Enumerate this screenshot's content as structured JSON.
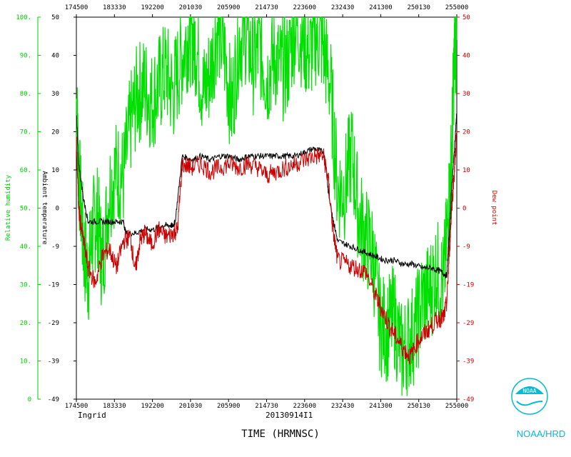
{
  "chart_data": {
    "type": "line",
    "storm": "Ingrid",
    "flight_id": "20130914I1",
    "xlabel": "TIME (HRMNSC)",
    "x_ticks": [
      "174500",
      "183330",
      "192200",
      "201030",
      "205900",
      "214730",
      "223600",
      "232430",
      "241300",
      "250130",
      "255000"
    ],
    "x_range_hours": [
      17.75,
      25.8333
    ],
    "left_temp_axis": {
      "label": "Ambient temperature",
      "ticks": [
        "50",
        "40",
        "30",
        "20",
        "10",
        "0",
        "-9",
        "-19",
        "-29",
        "-39",
        "-49"
      ],
      "range": [
        -49,
        50
      ]
    },
    "rh_axis": {
      "label": "Relative humidity",
      "ticks": [
        "100.",
        "90.",
        "80.",
        "70.",
        "60.",
        "50.",
        "40.",
        "30.",
        "20.",
        "10.",
        "0"
      ],
      "range": [
        0,
        100
      ]
    },
    "right_axis": {
      "label": "Dew point",
      "ticks": [
        "50",
        "40",
        "30",
        "20",
        "10",
        "0",
        "-9",
        "-19",
        "-29",
        "-39",
        "-49"
      ],
      "range": [
        -49,
        50
      ]
    },
    "series": [
      {
        "name": "Relative humidity",
        "color": "#00e000",
        "axis": "rh",
        "x_hours": [
          17.75,
          17.8,
          17.9,
          18.0,
          18.1,
          18.2,
          18.3,
          18.45,
          18.6,
          18.75,
          18.9,
          19.05,
          19.2,
          19.35,
          19.5,
          19.65,
          19.8,
          19.95,
          20.1,
          20.2,
          20.3,
          20.45,
          20.6,
          20.75,
          20.9,
          21.05,
          21.2,
          21.35,
          21.5,
          21.65,
          21.8,
          21.95,
          22.1,
          22.25,
          22.4,
          22.55,
          22.7,
          22.85,
          23.0,
          23.15,
          23.3,
          23.45,
          23.6,
          23.75,
          23.9,
          24.05,
          24.2,
          24.35,
          24.5,
          24.65,
          24.8,
          24.95,
          25.1,
          25.25,
          25.4,
          25.55,
          25.65,
          25.72,
          25.78,
          25.83
        ],
        "y": [
          78,
          60,
          40,
          32,
          45,
          48,
          35,
          55,
          60,
          58,
          72,
          80,
          82,
          78,
          82,
          86,
          80,
          88,
          94,
          96,
          92,
          80,
          86,
          98,
          90,
          76,
          94,
          96,
          88,
          92,
          84,
          90,
          86,
          88,
          98,
          95,
          90,
          96,
          92,
          82,
          55,
          55,
          65,
          48,
          42,
          38,
          20,
          18,
          22,
          12,
          15,
          18,
          26,
          28,
          34,
          30,
          48,
          62,
          90,
          94
        ]
      },
      {
        "name": "Ambient temperature",
        "color": "#000000",
        "axis": "temp",
        "x_hours": [
          17.75,
          17.8,
          17.9,
          18.0,
          18.2,
          18.4,
          18.6,
          18.75,
          18.8,
          19.0,
          19.2,
          19.4,
          19.6,
          19.75,
          19.8,
          19.85,
          20.0,
          20.2,
          20.4,
          20.6,
          20.8,
          21.0,
          21.2,
          21.4,
          21.6,
          21.8,
          22.0,
          22.2,
          22.4,
          22.6,
          22.8,
          23.0,
          23.05,
          23.1,
          23.2,
          23.3,
          23.5,
          23.7,
          23.9,
          24.1,
          24.3,
          24.5,
          24.7,
          24.9,
          25.1,
          25.3,
          25.5,
          25.62,
          25.68,
          25.72,
          25.78,
          25.83
        ],
        "y": [
          25,
          12,
          3,
          -3,
          -3,
          -3,
          -3,
          -3,
          -6,
          -6,
          -5,
          -5,
          -4,
          -4,
          -4,
          -3,
          14,
          13,
          14,
          13,
          14,
          14,
          13,
          14,
          14,
          14,
          14,
          14,
          14,
          15,
          16,
          15,
          12,
          5,
          -2,
          -8,
          -9,
          -10,
          -11,
          -12,
          -13,
          -13,
          -14,
          -14,
          -15,
          -15,
          -16,
          -17,
          -5,
          5,
          15,
          25
        ]
      },
      {
        "name": "Dew point",
        "color": "#cc0000",
        "axis": "temp",
        "x_hours": [
          17.75,
          17.8,
          17.9,
          18.0,
          18.15,
          18.3,
          18.45,
          18.6,
          18.75,
          18.9,
          19.0,
          19.1,
          19.2,
          19.35,
          19.5,
          19.65,
          19.8,
          19.9,
          20.0,
          20.2,
          20.4,
          20.6,
          20.8,
          21.0,
          21.2,
          21.4,
          21.6,
          21.8,
          22.0,
          22.2,
          22.4,
          22.6,
          22.8,
          23.0,
          23.1,
          23.2,
          23.3,
          23.5,
          23.7,
          23.9,
          24.1,
          24.25,
          24.4,
          24.55,
          24.7,
          24.85,
          25.0,
          25.15,
          25.3,
          25.45,
          25.55,
          25.62,
          25.68,
          25.72,
          25.78,
          25.83
        ],
        "y": [
          18,
          0,
          -8,
          -15,
          -19,
          -12,
          -10,
          -15,
          -8,
          -7,
          -16,
          -8,
          -6,
          -9,
          -5,
          -7,
          -6,
          -5,
          12,
          11,
          12,
          10,
          11,
          12,
          11,
          12,
          11,
          9,
          10,
          11,
          12,
          13,
          14,
          14,
          8,
          -5,
          -13,
          -14,
          -15,
          -16,
          -22,
          -26,
          -30,
          -33,
          -36,
          -38,
          -34,
          -32,
          -30,
          -28,
          -28,
          -24,
          -10,
          0,
          10,
          20
        ]
      }
    ],
    "grid": false
  },
  "branding": {
    "logo_text": "NOAA",
    "caption": "NOAA/HRD"
  }
}
